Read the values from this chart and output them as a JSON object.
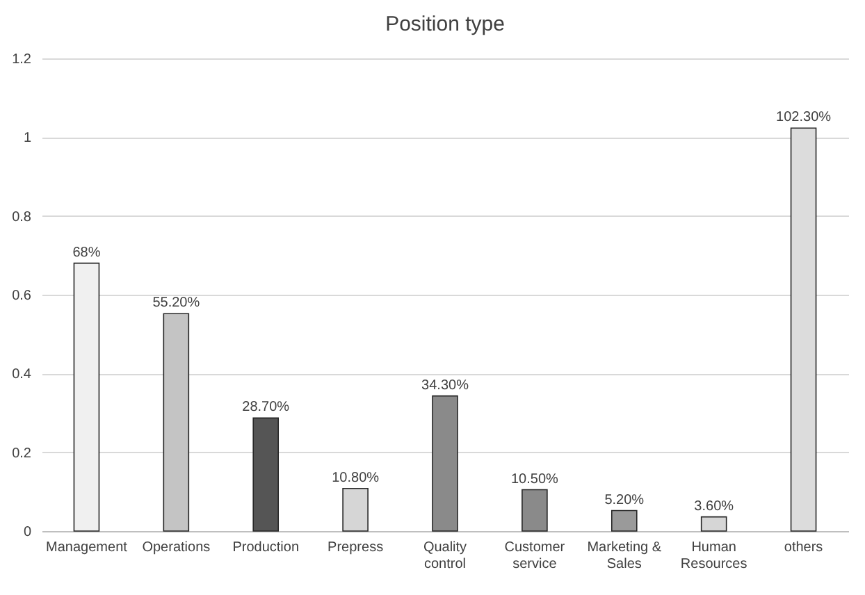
{
  "chart_data": {
    "type": "bar",
    "title": "Position type",
    "categories": [
      "Management",
      "Operations",
      "Production",
      "Prepress",
      "Quality control",
      "Customer service",
      "Marketing & Sales",
      "Human Resources",
      "others"
    ],
    "values": [
      0.68,
      0.552,
      0.287,
      0.108,
      0.343,
      0.105,
      0.052,
      0.036,
      1.023
    ],
    "value_labels": [
      "68%",
      "55.20%",
      "28.70%",
      "10.80%",
      "34.30%",
      "10.50%",
      "5.20%",
      "3.60%",
      "102.30%"
    ],
    "colors": [
      "#f0f0f0",
      "#c4c4c4",
      "#555555",
      "#d6d6d6",
      "#8a8a8a",
      "#8a8a8a",
      "#9a9a9a",
      "#d6d6d6",
      "#dcdcdc"
    ],
    "ylim": [
      0,
      1.2
    ],
    "yticks": [
      0,
      0.2,
      0.4,
      0.6,
      0.8,
      1,
      1.2
    ],
    "grid": "y"
  }
}
